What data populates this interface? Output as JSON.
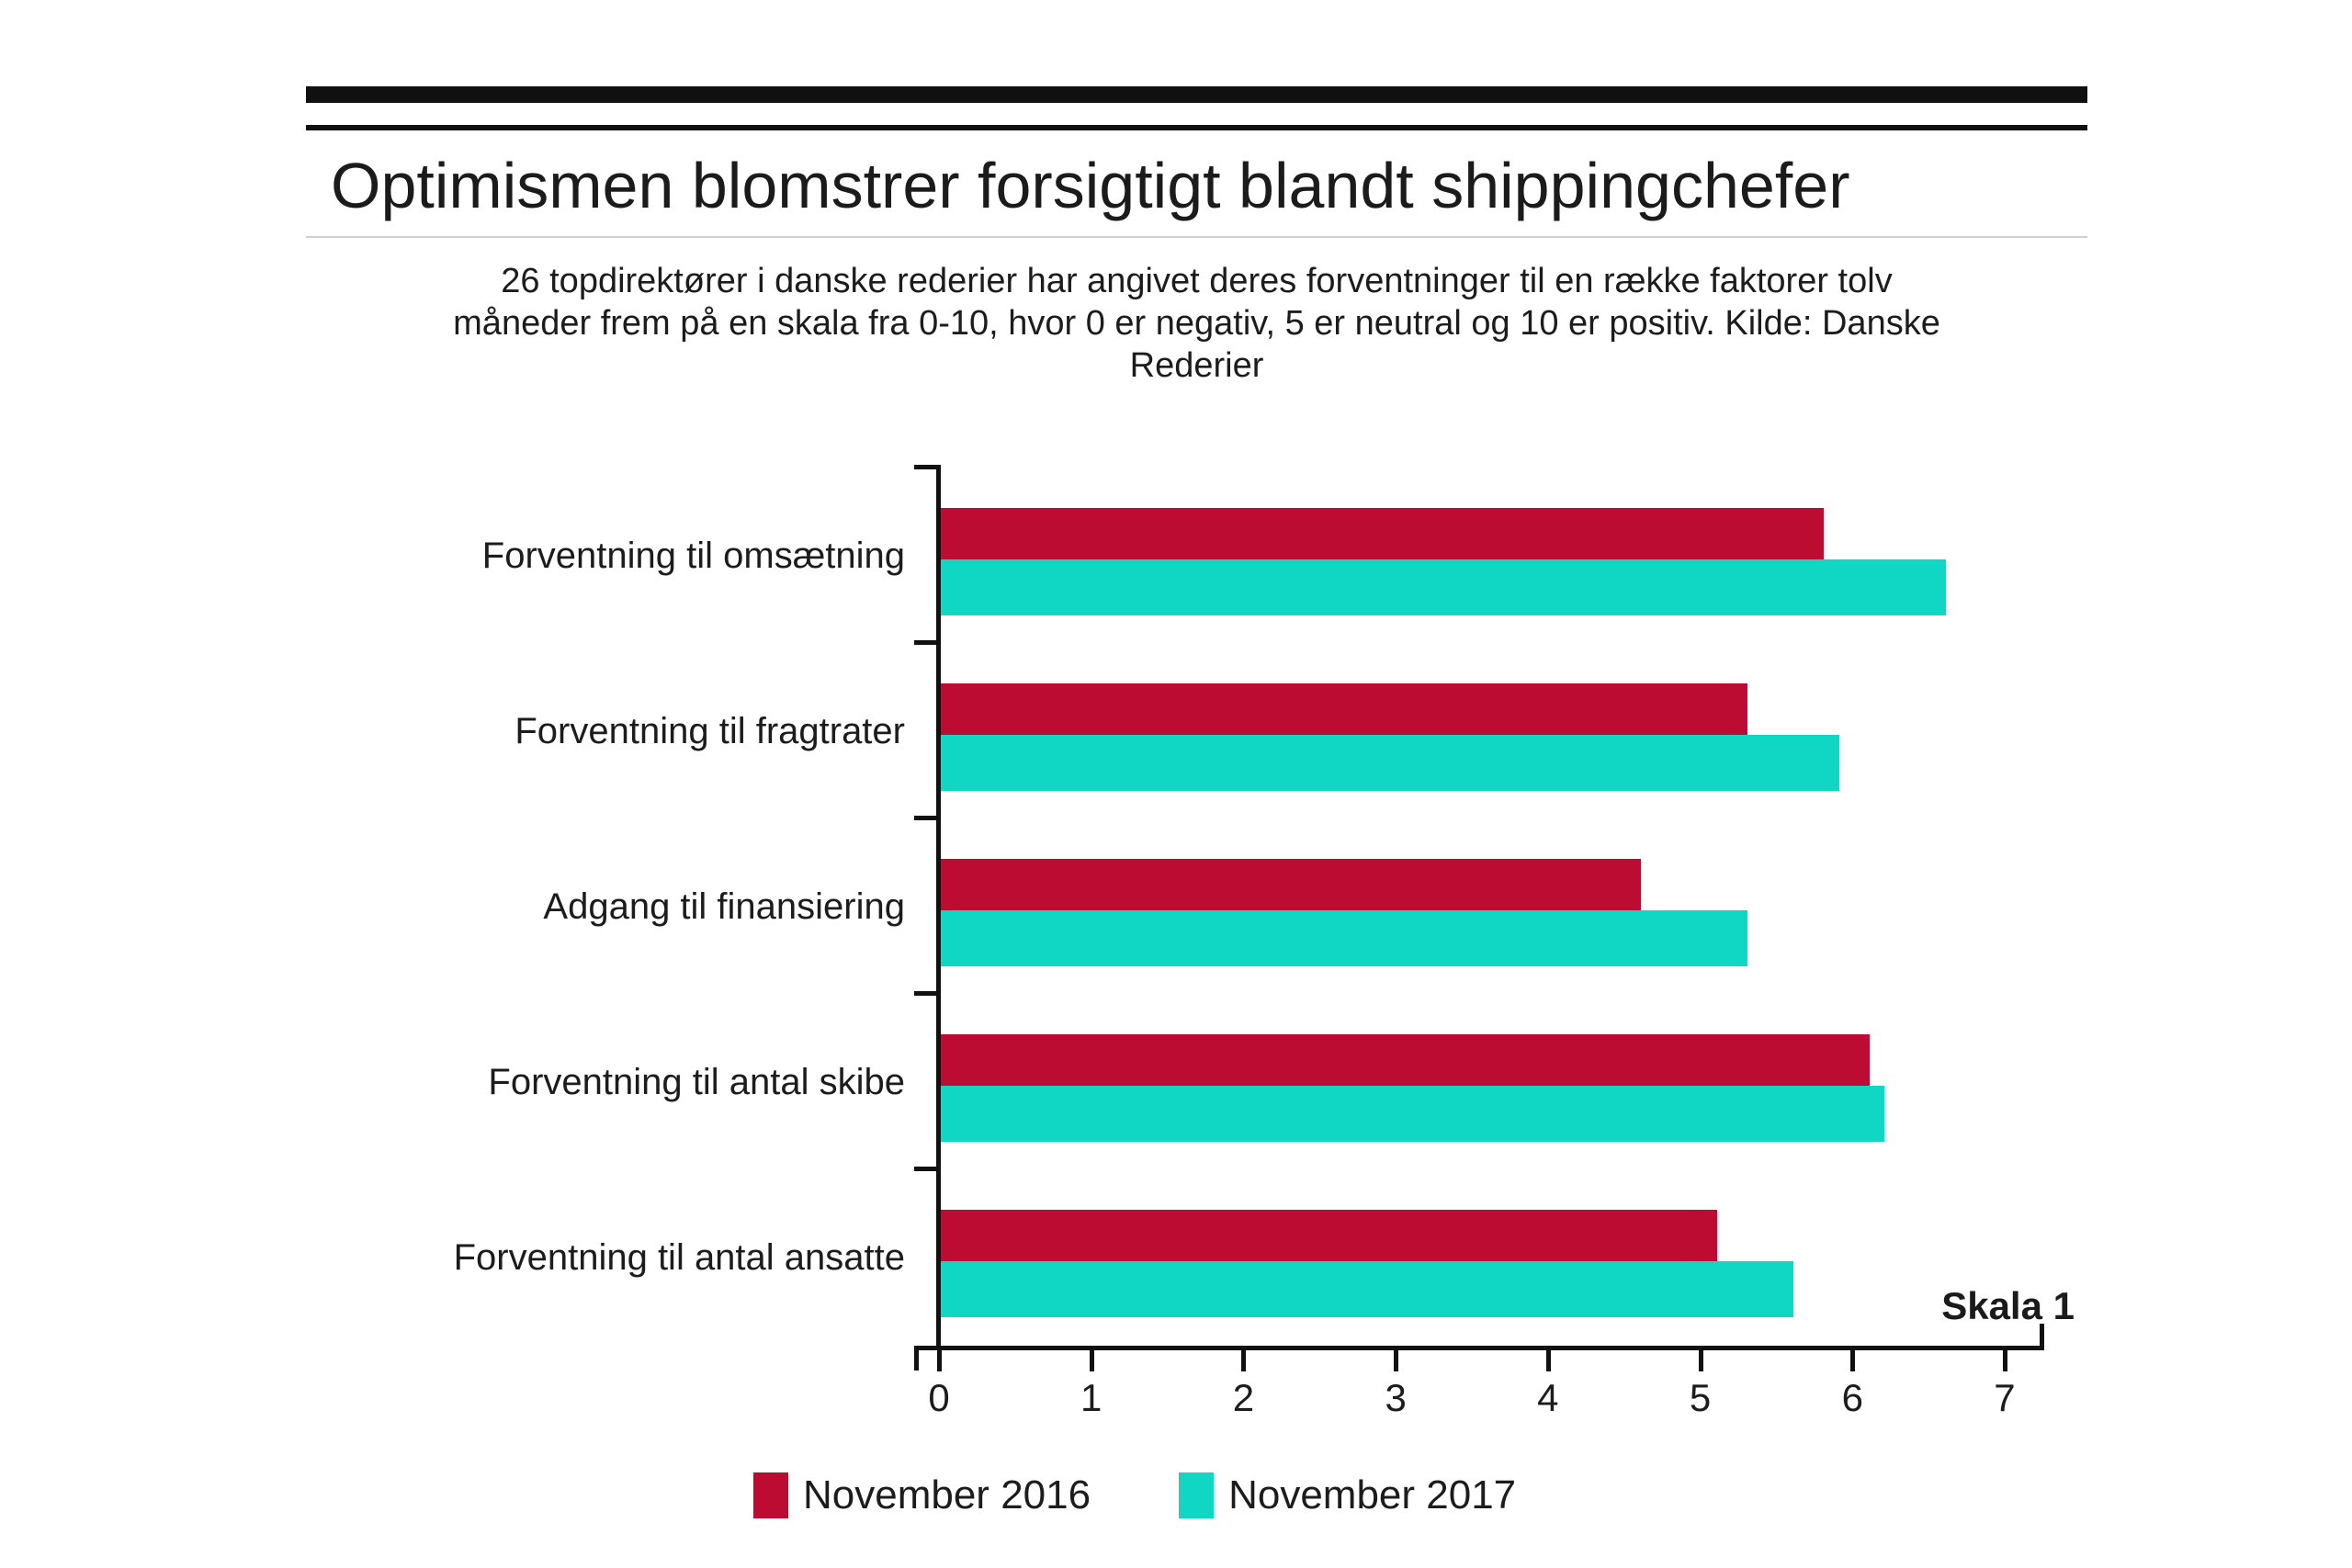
{
  "title": "Optimismen blomstrer forsigtigt blandt shippingchefer",
  "subtitle_lines": [
    "26 topdirektører i danske rederier har angivet deres forventninger til en række faktorer tolv",
    "måneder frem på en skala fra 0-10, hvor 0 er negativ, 5 er neutral og 10 er positiv. Kilde: Danske",
    "Rederier"
  ],
  "axis_note": "Skala 1",
  "legend": {
    "series_2016": "November 2016",
    "series_2017": "November 2017"
  },
  "colors": {
    "series_2016": "#bc0c31",
    "series_2017": "#0fd7c3",
    "axis": "#111111",
    "text": "#1c1c1c"
  },
  "chart_data": {
    "type": "bar",
    "orientation": "horizontal",
    "title": "Optimismen blomstrer forsigtigt blandt shippingchefer",
    "categories": [
      "Forventning til omsætning",
      "Forventning til fragtrater",
      "Adgang til finansiering",
      "Forventning til antal skibe",
      "Forventning til antal ansatte"
    ],
    "series": [
      {
        "name": "November 2016",
        "color": "#bc0c31",
        "values": [
          5.8,
          5.3,
          4.6,
          6.1,
          5.1
        ]
      },
      {
        "name": "November 2017",
        "color": "#0fd7c3",
        "values": [
          6.6,
          5.9,
          5.3,
          6.2,
          5.6
        ]
      }
    ],
    "x_ticks": [
      0,
      1,
      2,
      3,
      4,
      5,
      6,
      7
    ],
    "xlim": [
      0,
      7.35
    ],
    "xlabel": "Skala 1",
    "grid": false,
    "legend_position": "bottom"
  }
}
